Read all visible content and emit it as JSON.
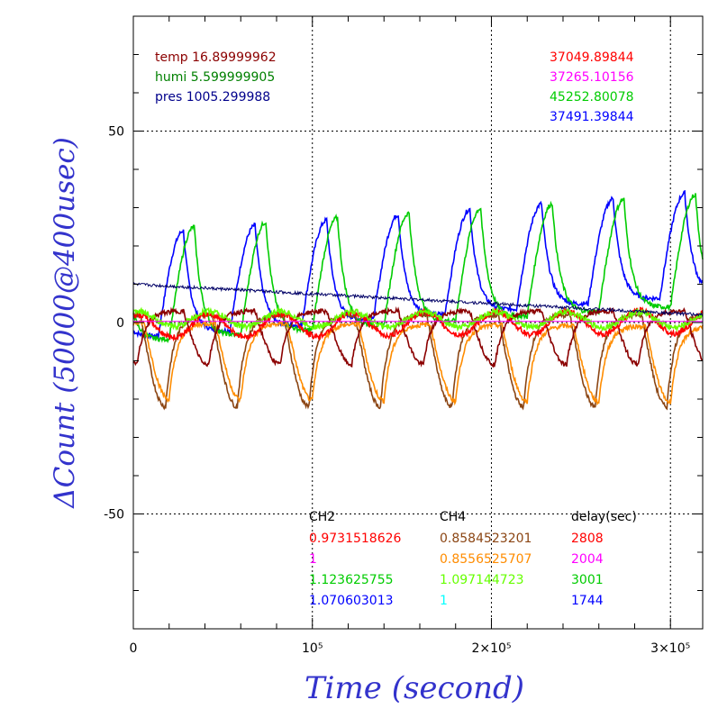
{
  "chart_data": {
    "type": "line",
    "xlabel": "Time (second)",
    "ylabel": "ΔCount (50000@400usec)",
    "xlim": [
      0,
      318000
    ],
    "ylim": [
      -80,
      80
    ],
    "x_ticks": [
      {
        "value": 0,
        "label": "0"
      },
      {
        "value": 100000,
        "label": "10⁵"
      },
      {
        "value": 200000,
        "label": "2×10⁵"
      },
      {
        "value": 300000,
        "label": "3×10⁵"
      }
    ],
    "y_ticks": [
      {
        "value": 50,
        "label": "50"
      },
      {
        "value": 0,
        "label": "0"
      },
      {
        "value": -50,
        "label": "-50"
      }
    ],
    "grid": "dotted, at major ticks",
    "env_legend": [
      {
        "text": "temp 16.89999962",
        "color": "#8b0000"
      },
      {
        "text": "humi 5.599999905",
        "color": "#008000"
      },
      {
        "text": "pres 1005.299988",
        "color": "#00008b"
      }
    ],
    "right_legend": [
      {
        "text": "37049.89844",
        "color": "#ff0000"
      },
      {
        "text": "37265.10156",
        "color": "#ff00ff"
      },
      {
        "text": "45252.80078",
        "color": "#00cc00"
      },
      {
        "text": "37491.39844",
        "color": "#0000ff"
      }
    ],
    "table": {
      "headers": [
        "CH2",
        "CH4",
        "delay(sec)"
      ],
      "rows": [
        {
          "ch2": "0.9731518626",
          "ch4": "0.8584523201",
          "delay": "2808",
          "c2": "#ff0000",
          "c4": "#8b4513",
          "cd": "#ff0000"
        },
        {
          "ch2": "1",
          "ch4": "0.8556525707",
          "delay": "2004",
          "c2": "#ff00ff",
          "c4": "#ff8c00",
          "cd": "#ff00ff"
        },
        {
          "ch2": "1.123625755",
          "ch4": "1.097144723",
          "delay": "3001",
          "c2": "#00cc00",
          "c4": "#66ff00",
          "cd": "#00cc00"
        },
        {
          "ch2": "1.070603013",
          "ch4": "1",
          "delay": "1744",
          "c2": "#0000ff",
          "c4": "#00ffff",
          "cd": "#0000ff"
        }
      ]
    },
    "series": [
      {
        "color": "#0000ff",
        "style": "periodic",
        "period": 40000,
        "phase": 14000,
        "amp": 27,
        "base": -4,
        "trend": 0.035
      },
      {
        "color": "#00cc00",
        "style": "periodic",
        "period": 40000,
        "phase": 20000,
        "amp": 29,
        "base": -5,
        "trend": 0.03
      },
      {
        "color": "#8b4513",
        "style": "periodic",
        "period": 40000,
        "phase": 4000,
        "amp": -24,
        "base": 2,
        "trend": 0.0
      },
      {
        "color": "#ff8c00",
        "style": "periodic",
        "period": 40000,
        "phase": 6000,
        "amp": -20,
        "base": 0,
        "trend": -0.01
      },
      {
        "color": "#8b0000",
        "style": "periodic",
        "period": 40000,
        "phase": 28000,
        "amp": -14,
        "base": 3,
        "trend": 0.0
      },
      {
        "color": "#ff0000",
        "style": "slow",
        "base": -1,
        "amp": 3,
        "trend": 0.04
      },
      {
        "color": "#66ff00",
        "style": "slow",
        "base": 1,
        "amp": 2,
        "trend": -0.01
      },
      {
        "color": "#ff00ff",
        "style": "flat",
        "base": 0.3
      },
      {
        "color": "#000066",
        "style": "decay",
        "base": 10,
        "end": 2
      }
    ]
  }
}
